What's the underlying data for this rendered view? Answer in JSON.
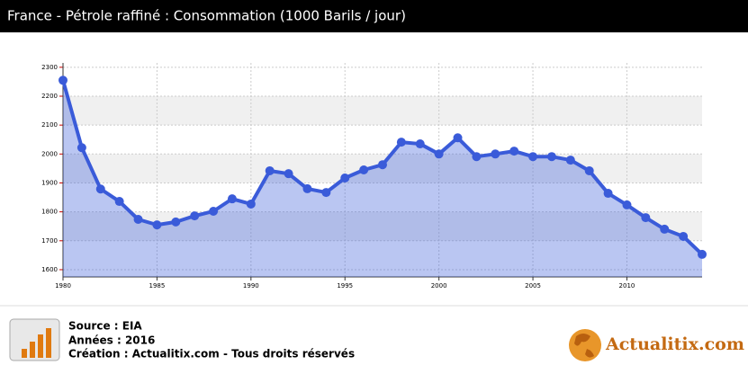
{
  "chart_data": {
    "type": "area-line",
    "title": "France - Pétrole raffiné : Consommation (1000 Barils / jour)",
    "x": [
      1980,
      1981,
      1982,
      1983,
      1984,
      1985,
      1986,
      1987,
      1988,
      1989,
      1990,
      1991,
      1992,
      1993,
      1994,
      1995,
      1996,
      1997,
      1998,
      1999,
      2000,
      2001,
      2002,
      2003,
      2004,
      2005,
      2006,
      2007,
      2008,
      2009,
      2010,
      2011,
      2012,
      2013,
      2014
    ],
    "values": [
      2255,
      2022,
      1879,
      1836,
      1774,
      1755,
      1765,
      1786,
      1802,
      1845,
      1827,
      1942,
      1932,
      1880,
      1867,
      1917,
      1945,
      1963,
      2041,
      2035,
      2000,
      2056,
      1991,
      2000,
      2010,
      1991,
      1991,
      1979,
      1942,
      1864,
      1824,
      1780,
      1740,
      1715,
      1653
    ],
    "color": "#3a5bd9",
    "xlim": [
      1980,
      2014
    ],
    "xticks": [
      1980,
      1985,
      1990,
      1995,
      2000,
      2005,
      2010
    ],
    "ylim": [
      1575,
      2315
    ],
    "yticks": [
      1600,
      1700,
      1800,
      1900,
      2000,
      2100,
      2200,
      2300
    ],
    "grid": true
  },
  "footer": {
    "source": "Source : EIA",
    "years": "Années : 2016",
    "credit": "Création : Actualitix.com - Tous droits réservés",
    "logo": "Actualitix.com"
  }
}
